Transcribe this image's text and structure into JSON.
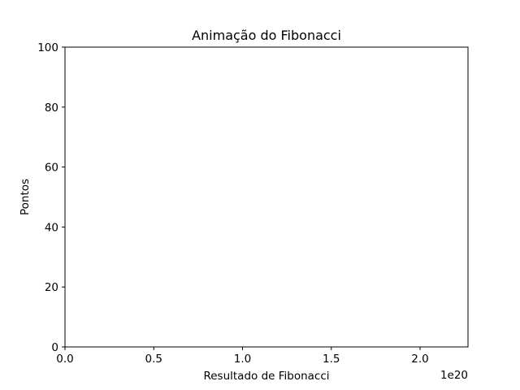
{
  "chart_data": {
    "type": "line",
    "title": "Animação do Fibonacci",
    "xlabel": "Resultado de Fibonacci",
    "ylabel": "Pontos",
    "x_offset_label": "1e20",
    "xlim": [
      0,
      2.27
    ],
    "ylim": [
      0,
      100
    ],
    "x_ticks": [
      {
        "value": 0.0,
        "label": "0.0"
      },
      {
        "value": 0.5,
        "label": "0.5"
      },
      {
        "value": 1.0,
        "label": "1.0"
      },
      {
        "value": 1.5,
        "label": "1.5"
      },
      {
        "value": 2.0,
        "label": "2.0"
      }
    ],
    "y_ticks": [
      {
        "value": 0,
        "label": "0"
      },
      {
        "value": 20,
        "label": "20"
      },
      {
        "value": 40,
        "label": "40"
      },
      {
        "value": 60,
        "label": "60"
      },
      {
        "value": 80,
        "label": "80"
      },
      {
        "value": 100,
        "label": "100"
      }
    ],
    "series": [],
    "grid": false
  },
  "colors": {
    "spine": "#000000",
    "background": "#ffffff"
  }
}
